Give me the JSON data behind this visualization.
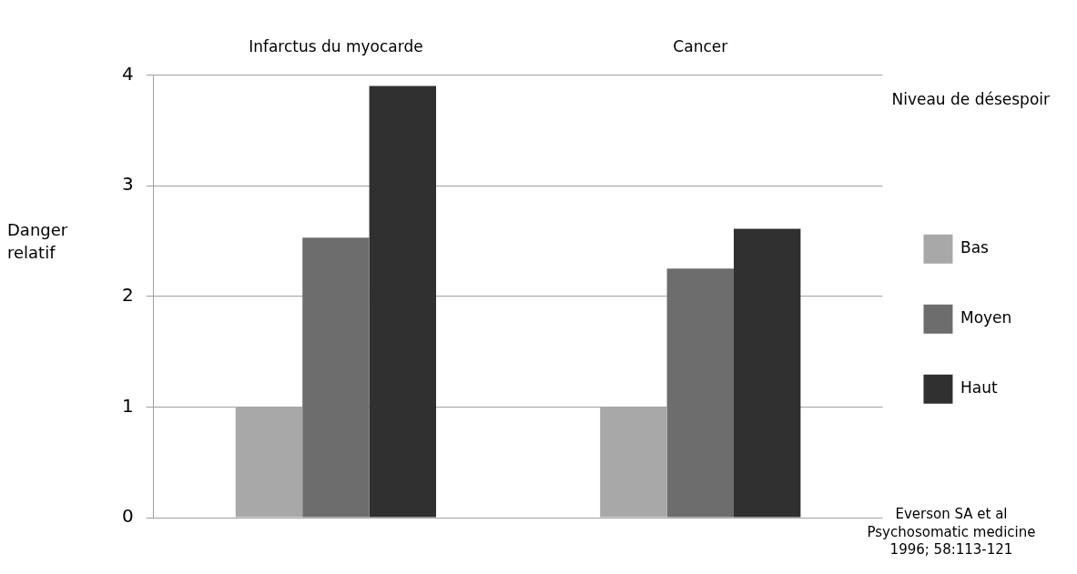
{
  "chart_data": {
    "type": "bar",
    "categories": [
      "Infarctus du myocarde",
      "Cancer"
    ],
    "series": [
      {
        "name": "Bas",
        "color": "#a8a8a8",
        "values": [
          1,
          1
        ]
      },
      {
        "name": "Moyen",
        "color": "#6d6d6d",
        "values": [
          2.53,
          2.25
        ]
      },
      {
        "name": "Haut",
        "color": "#303030",
        "values": [
          3.9,
          2.61
        ]
      }
    ],
    "ylabel": "Danger relatif",
    "legend_title": "Niveau de désespoir",
    "ylim": [
      0,
      4
    ],
    "yticks": [
      0,
      1,
      2,
      3,
      4
    ],
    "grid": "y",
    "legend": "right",
    "annotations": [
      "Everson SA et al",
      "Psychosomatic medicine",
      "1996; 58:113-121"
    ]
  }
}
